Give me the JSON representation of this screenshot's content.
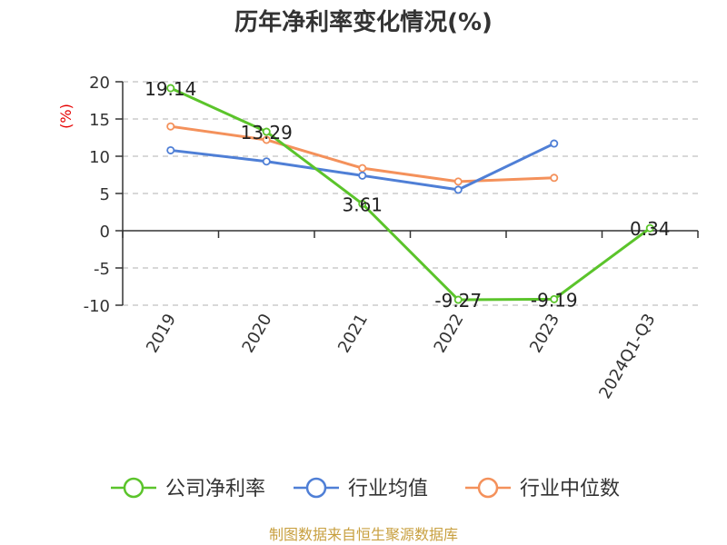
{
  "chart_data": {
    "type": "line",
    "title": "历年净利率变化情况(%)",
    "ylabel": "(%)",
    "ylim": [
      -10,
      20
    ],
    "yticks": [
      20,
      15,
      10,
      5,
      0,
      -5,
      -10
    ],
    "categories": [
      "2019",
      "2020",
      "2021",
      "2022",
      "2023",
      "2024Q1-Q3"
    ],
    "grid": true,
    "legend_position": "bottom",
    "series": [
      {
        "name": "公司净利率",
        "color": "#5bc42b",
        "values": [
          19.14,
          13.29,
          3.61,
          -9.27,
          -9.19,
          0.34
        ],
        "labels": [
          "19.14",
          "13.29",
          "3.61",
          "-9.27",
          "-9.19",
          "0.34"
        ]
      },
      {
        "name": "行业均值",
        "color": "#4f7fd6",
        "values": [
          10.8,
          9.3,
          7.4,
          5.5,
          11.7,
          null
        ]
      },
      {
        "name": "行业中位数",
        "color": "#f4915b",
        "values": [
          14.0,
          12.2,
          8.4,
          6.6,
          7.1,
          null
        ]
      }
    ]
  },
  "source": "制图数据来自恒生聚源数据库"
}
